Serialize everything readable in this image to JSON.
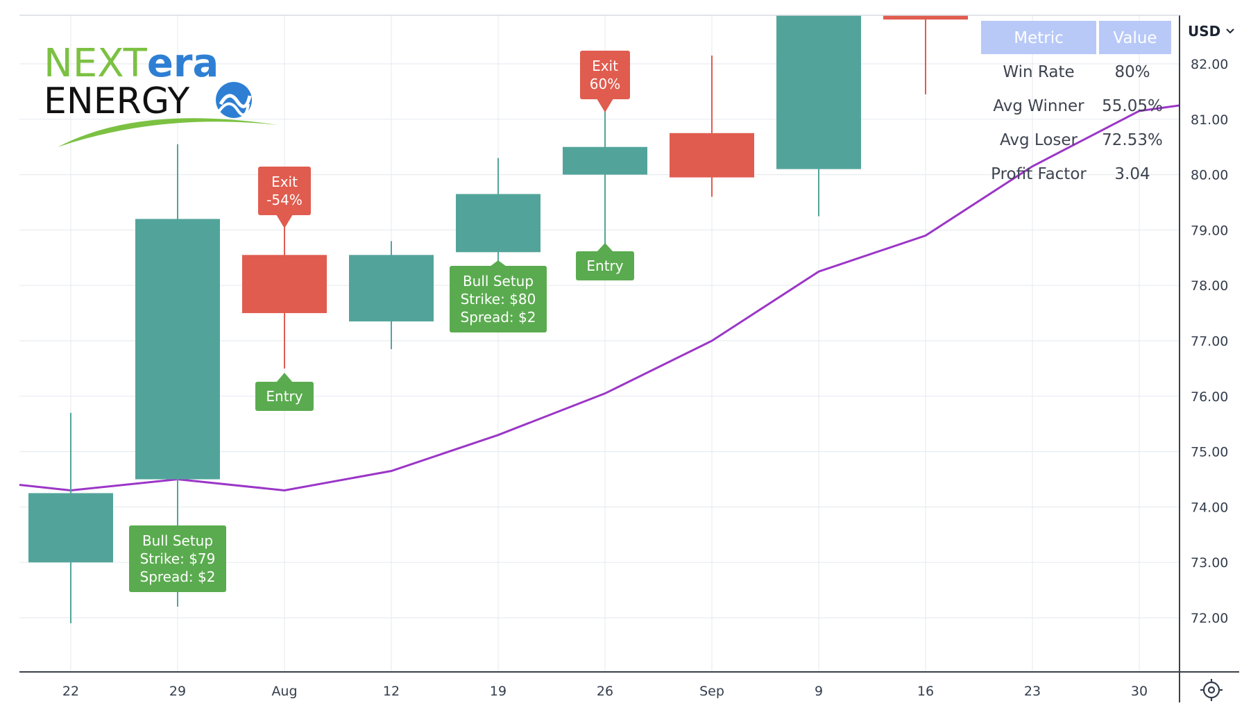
{
  "logo": {
    "line1_a": "NEXT",
    "line1_b": "era",
    "line2": "ENERGY",
    "colors": {
      "next": "#7cc142",
      "era": "#2e7fd4",
      "energy": "#111111",
      "swoosh": "#7cc142"
    }
  },
  "currency": {
    "label": "USD",
    "icon": "chevron-down-icon"
  },
  "settings_icon": "gear-icon",
  "colors": {
    "up": "#52a49a",
    "down": "#e05c4f",
    "line": "#9b36c7",
    "label_green": "#5aab4f",
    "label_red": "#e05c4f",
    "grid": "#e8ecf0",
    "header": "#b8c9f8"
  },
  "stats_table": {
    "headers": [
      "Metric",
      "Value"
    ],
    "rows": [
      [
        "Win Rate",
        "80%"
      ],
      [
        "Avg Winner",
        "55.05%"
      ],
      [
        "Avg Loser",
        "72.53%"
      ],
      [
        "Profit Factor",
        "3.04"
      ]
    ]
  },
  "chart_data": {
    "type": "candlestick",
    "x_tick_labels": [
      "22",
      "29",
      "Aug",
      "12",
      "19",
      "26",
      "Sep",
      "9",
      "16",
      "23",
      "30"
    ],
    "y_tick_labels": [
      "72.00",
      "73.00",
      "74.00",
      "75.00",
      "76.00",
      "77.00",
      "78.00",
      "79.00",
      "80.00",
      "81.00",
      "82.00"
    ],
    "ylim": [
      71.0,
      82.9
    ],
    "grid": true,
    "candles": [
      {
        "x": "22",
        "open": 73.0,
        "close": 74.25,
        "high": 75.7,
        "low": 71.9
      },
      {
        "x": "29",
        "open": 74.5,
        "close": 79.2,
        "high": 80.55,
        "low": 72.2
      },
      {
        "x": "Aug",
        "open": 78.55,
        "close": 77.5,
        "high": 79.2,
        "low": 76.5
      },
      {
        "x": "12",
        "open": 77.35,
        "close": 78.55,
        "high": 78.8,
        "low": 76.85
      },
      {
        "x": "19",
        "open": 78.6,
        "close": 79.65,
        "high": 80.3,
        "low": 78.4
      },
      {
        "x": "26",
        "open": 80.0,
        "close": 80.5,
        "high": 81.2,
        "low": 78.6
      },
      {
        "x": "Sep",
        "open": 80.75,
        "close": 79.95,
        "high": 82.15,
        "low": 79.6
      },
      {
        "x": "9",
        "open": 80.1,
        "close": 82.9,
        "high": 82.9,
        "low": 79.25
      },
      {
        "x": "16",
        "open": 82.9,
        "close": 82.8,
        "high": 82.9,
        "low": 81.45
      }
    ],
    "line": {
      "x": [
        "20",
        "22",
        "29",
        "Aug",
        "12",
        "19",
        "26",
        "Sep",
        "9",
        "16",
        "23",
        "30",
        "32"
      ],
      "values": [
        74.4,
        74.3,
        74.5,
        74.3,
        74.65,
        75.3,
        76.05,
        77.0,
        78.25,
        78.9,
        80.15,
        81.15,
        81.25
      ]
    },
    "annotations": [
      {
        "x": "29",
        "kind": "entry",
        "text": [
          "Bull Setup",
          "Strike: $79",
          "Spread: $2"
        ]
      },
      {
        "x": "Aug",
        "kind": "exit",
        "text": [
          "Exit",
          "-54%"
        ]
      },
      {
        "x": "Aug",
        "kind": "entry",
        "text": [
          "Entry"
        ]
      },
      {
        "x": "19",
        "kind": "entry",
        "text": [
          "Bull Setup",
          "Strike: $80",
          "Spread: $2"
        ]
      },
      {
        "x": "26",
        "kind": "exit",
        "text": [
          "Exit",
          "60%"
        ]
      },
      {
        "x": "26",
        "kind": "entry",
        "text": [
          "Entry"
        ]
      }
    ]
  }
}
